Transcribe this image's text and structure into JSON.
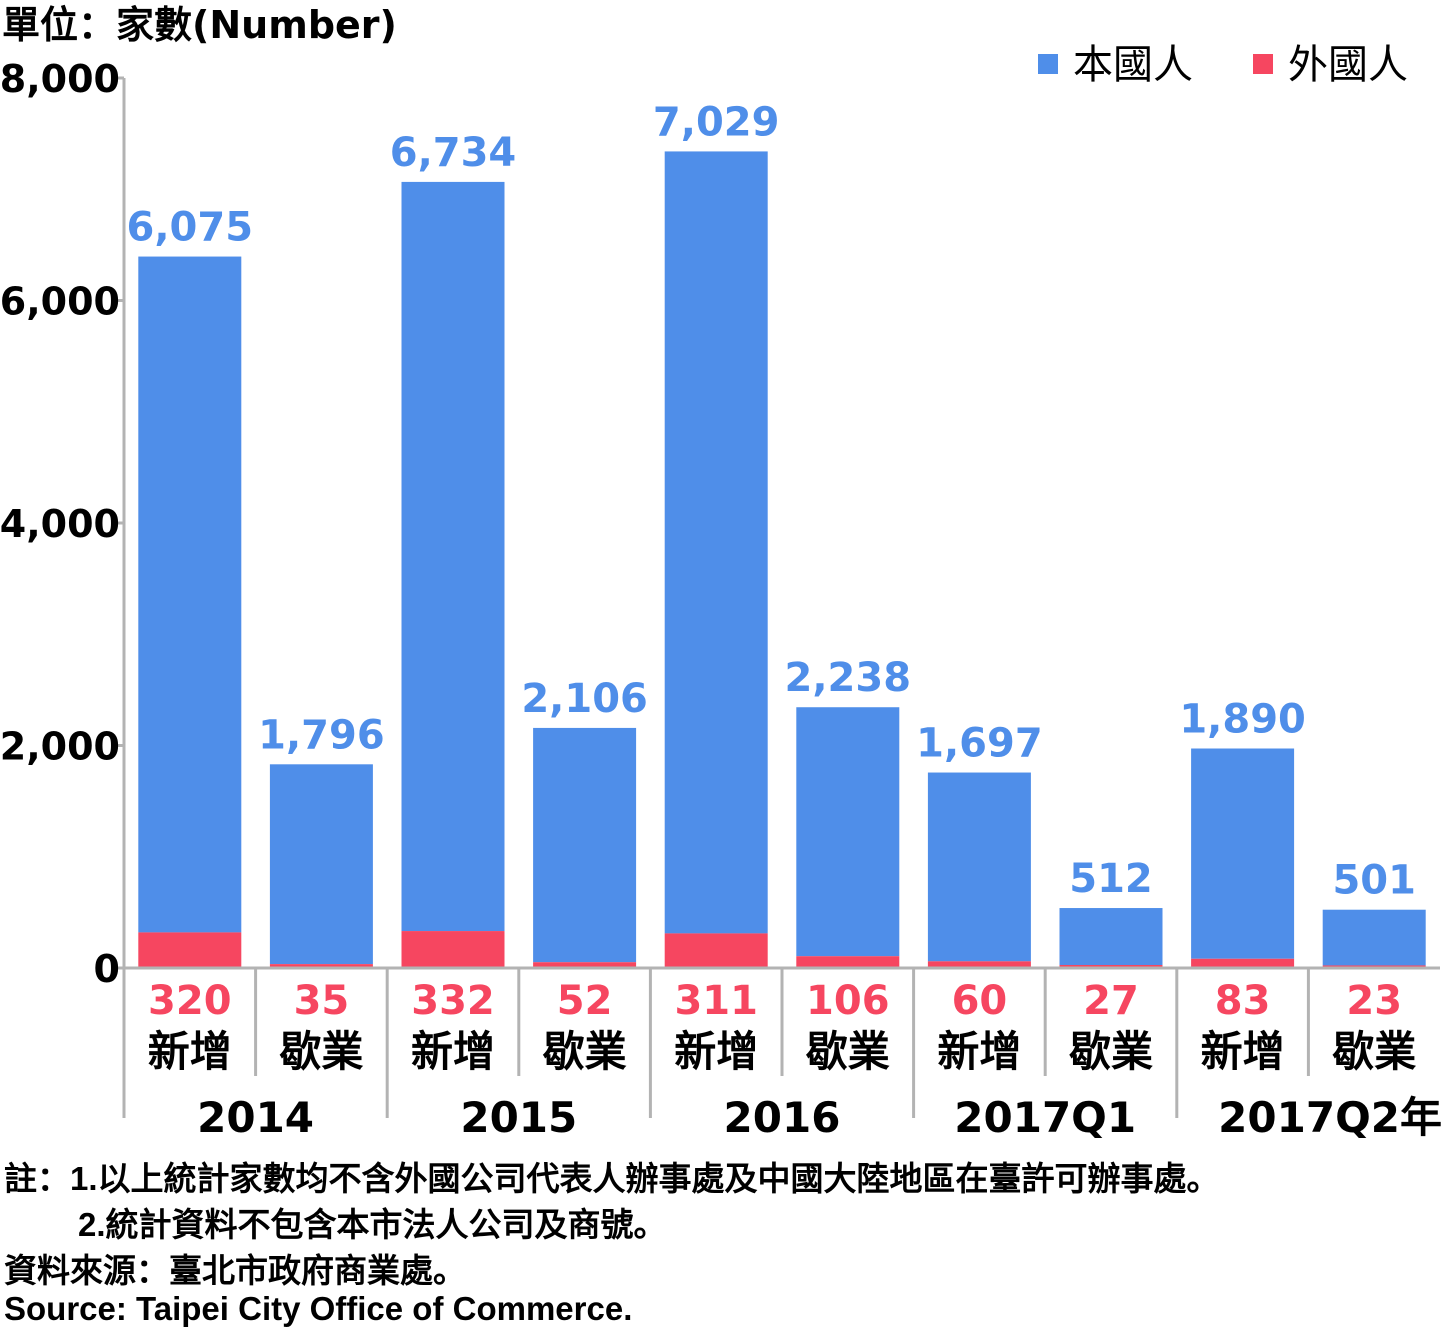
{
  "chart_data": {
    "type": "bar",
    "stacked": true,
    "unit_label": "單位：家數(Number)",
    "legend": {
      "position": "top-right",
      "items": [
        {
          "name": "本國人",
          "color": "#4f8ee9"
        },
        {
          "name": "外國人",
          "color": "#f64660"
        }
      ]
    },
    "ylim": [
      0,
      8000
    ],
    "yticks": [
      "0",
      "2,000",
      "4,000",
      "6,000",
      "8,000"
    ],
    "ytick_values": [
      0,
      2000,
      4000,
      6000,
      8000
    ],
    "groups": [
      "2014",
      "2015",
      "2016",
      "2017Q1",
      "2017Q2年"
    ],
    "categories": [
      "新增",
      "歇業",
      "新增",
      "歇業",
      "新增",
      "歇業",
      "新增",
      "歇業",
      "新增",
      "歇業"
    ],
    "series": [
      {
        "name": "外國人",
        "color": "#f64660",
        "values": [
          320,
          35,
          332,
          52,
          311,
          106,
          60,
          27,
          83,
          23
        ],
        "labels": [
          "320",
          "35",
          "332",
          "52",
          "311",
          "106",
          "60",
          "27",
          "83",
          "23"
        ]
      },
      {
        "name": "本國人",
        "color": "#4f8ee9",
        "values": [
          6075,
          1796,
          6734,
          2106,
          7029,
          2238,
          1697,
          512,
          1890,
          501
        ],
        "labels": [
          "6,075",
          "1,796",
          "6,734",
          "2,106",
          "7,029",
          "2,238",
          "1,697",
          "512",
          "1,890",
          "501"
        ]
      }
    ]
  },
  "notes": {
    "line1": "註：1.以上統計家數均不含外國公司代表人辦事處及中國大陸地區在臺許可辦事處。",
    "line2": "2.統計資料不包含本市法人公司及商號。",
    "source_zh": "資料來源：臺北市政府商業處。",
    "source_en": "Source: Taipei City Office of Commerce."
  }
}
